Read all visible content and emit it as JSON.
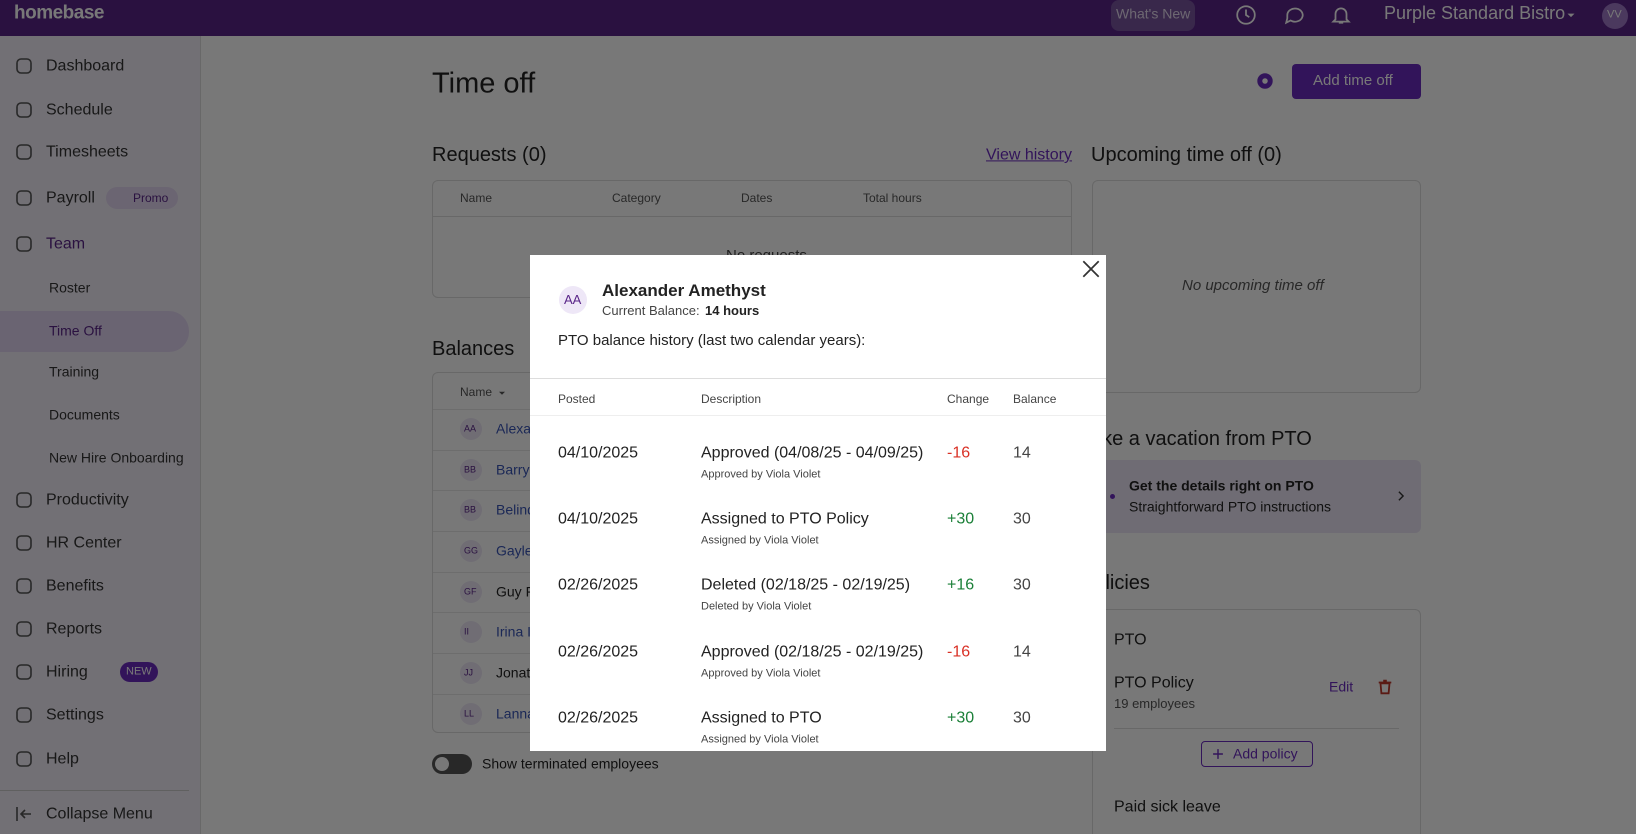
{
  "topbar": {
    "logo": "homebase",
    "whats_new": "What's New",
    "location": "Purple Standard Bistro",
    "user_initials": "VV"
  },
  "sidebar": {
    "items": [
      "Dashboard",
      "Schedule",
      "Timesheets",
      "Payroll",
      "Team"
    ],
    "payroll_badge": "Promo",
    "team_subitems": [
      "Roster",
      "Time Off",
      "Training",
      "Documents",
      "New Hire Onboarding"
    ],
    "items_2": [
      "Productivity",
      "HR Center",
      "Benefits",
      "Reports",
      "Hiring",
      "Settings",
      "Help"
    ],
    "hiring_badge": "NEW",
    "collapse": "Collapse Menu"
  },
  "main": {
    "title": "Time off",
    "add_button": "Add time off",
    "requests": {
      "title": "Requests (0)",
      "view_history": "View history",
      "columns": [
        "Name",
        "Category",
        "Dates",
        "Total hours"
      ],
      "empty": "No requests"
    },
    "upcoming": {
      "title": "Upcoming time off (0)",
      "empty": "No upcoming time off"
    },
    "balances": {
      "title": "Balances",
      "column": "Name",
      "rows": [
        {
          "initials": "AA",
          "name": "Alexa"
        },
        {
          "initials": "BB",
          "name": "Barry"
        },
        {
          "initials": "BB",
          "name": "Belind"
        },
        {
          "initials": "GG",
          "name": "Gayle"
        },
        {
          "initials": "GF",
          "name": "Guy F"
        },
        {
          "initials": "II",
          "name": "Irina I"
        },
        {
          "initials": "JJ",
          "name": "Jonath"
        },
        {
          "initials": "LL",
          "name": "Lanna"
        }
      ],
      "toggle": "Show terminated employees"
    },
    "promo": {
      "title": "Take a vacation from PTO",
      "line1": "Get the details right on PTO",
      "line2": "Straightforward PTO instructions"
    },
    "policies": {
      "title": "Policies",
      "group": "PTO",
      "policy_name": "PTO Policy",
      "policy_count": "19 employees",
      "edit": "Edit",
      "add": "Add policy",
      "next_group": "Paid sick leave"
    }
  },
  "modal": {
    "initials": "AA",
    "name": "Alexander Amethyst",
    "balance_label": "Current Balance:",
    "balance_value": "14 hours",
    "subtitle": "PTO balance history (last two calendar years):",
    "columns": [
      "Posted",
      "Description",
      "Change",
      "Balance"
    ],
    "rows": [
      {
        "posted": "04/10/2025",
        "description": "Approved (04/08/25 - 04/09/25)",
        "by": "Approved by Viola Violet",
        "change": "-16",
        "balance": "14"
      },
      {
        "posted": "04/10/2025",
        "description": "Assigned to PTO Policy",
        "by": "Assigned by Viola Violet",
        "change": "+30",
        "balance": "30"
      },
      {
        "posted": "02/26/2025",
        "description": "Deleted (02/18/25 - 02/19/25)",
        "by": "Deleted by Viola Violet",
        "change": "+16",
        "balance": "30"
      },
      {
        "posted": "02/26/2025",
        "description": "Approved (02/18/25 - 02/19/25)",
        "by": "Approved by Viola Violet",
        "change": "-16",
        "balance": "14"
      },
      {
        "posted": "02/26/2025",
        "description": "Assigned to PTO",
        "by": "Assigned by Viola Violet",
        "change": "+30",
        "balance": "30"
      }
    ]
  }
}
